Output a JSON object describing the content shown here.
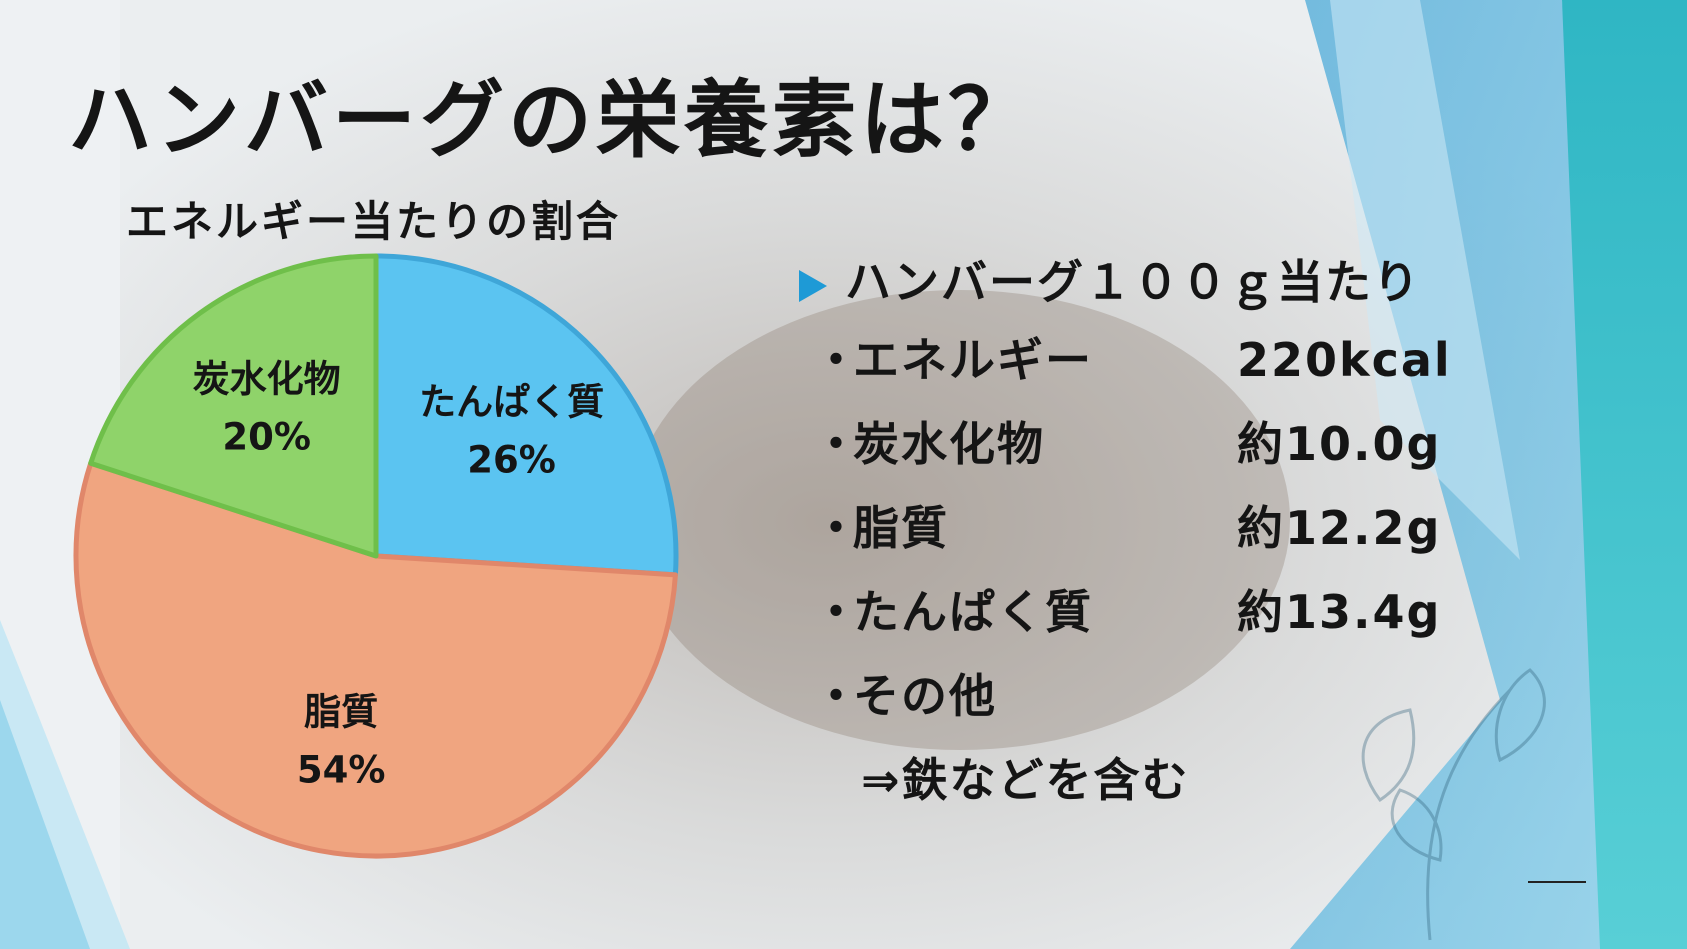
{
  "slide": {
    "title": "ハンバーグの栄養素は？",
    "subtitle": "エネルギー当たりの割合"
  },
  "chart_data": {
    "type": "pie",
    "title": "",
    "slices": [
      {
        "name": "たんぱく質",
        "value": 26,
        "label": "26%",
        "color": "#5bc4f1",
        "stroke": "#3fa6d8"
      },
      {
        "name": "脂質",
        "value": 54,
        "label": "54%",
        "color": "#f0a580",
        "stroke": "#e0876a"
      },
      {
        "name": "炭水化物",
        "value": 20,
        "label": "20%",
        "color": "#8fd36a",
        "stroke": "#6fbf4a"
      }
    ],
    "start_angle": "12 o'clock",
    "direction": "clockwise"
  },
  "info": {
    "heading": "ハンバーグ１００ｇ当たり",
    "bullet": "・",
    "rows": [
      {
        "label": "エネルギー",
        "value": "220kcal"
      },
      {
        "label": "炭水化物",
        "value": "約10.0g"
      },
      {
        "label": "脂質",
        "value": "約12.2g"
      },
      {
        "label": "たんぱく質",
        "value": "約13.4g"
      },
      {
        "label": "その他",
        "value": ""
      }
    ],
    "note": "⇒鉄などを含む"
  },
  "colors": {
    "accent": "#1e9ad6",
    "background_teal": "#3fbfd0",
    "background_blue": "#5ab6e0"
  }
}
